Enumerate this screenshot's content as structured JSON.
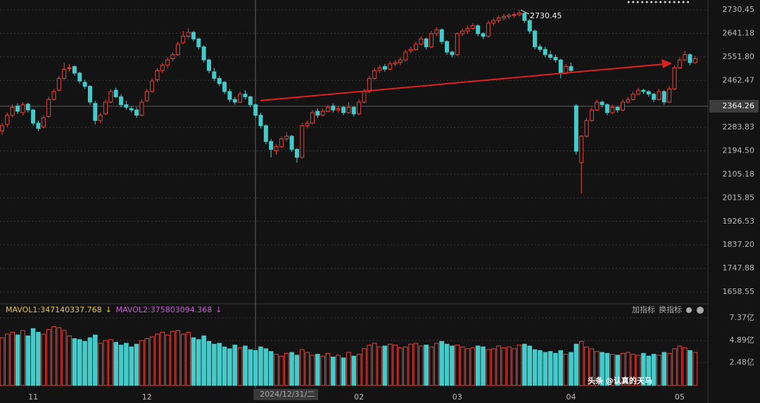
{
  "chart_data": {
    "type": "candlestick",
    "up_color": "#e8413c",
    "down_color": "#46c9c9",
    "ylim": [
      1618.5,
      2767.9
    ],
    "yticks": [
      2730.45,
      2641.18,
      {
        "value": 2551.8,
        "label": "2551.80"
      },
      2462.47,
      2283.83,
      {
        "value": 2194.5,
        "label": "2194.50"
      },
      2105.18,
      2015.85,
      1926.53,
      {
        "value": 1837.2,
        "label": "1837.20"
      },
      1747.88,
      1658.55
    ],
    "grid": true,
    "crosshair_value": 2364.26,
    "categories": [
      null,
      null,
      null,
      null,
      null,
      null,
      "11",
      null,
      null,
      null,
      null,
      null,
      null,
      null,
      null,
      null,
      null,
      null,
      null,
      null,
      null,
      null,
      null,
      null,
      null,
      null,
      null,
      null,
      "12",
      null,
      null,
      null,
      null,
      null,
      null,
      null,
      null,
      null,
      null,
      null,
      null,
      null,
      null,
      null,
      null,
      null,
      null,
      null,
      null,
      "2024/12/31/二",
      null,
      null,
      null,
      null,
      null,
      null,
      null,
      null,
      null,
      null,
      null,
      null,
      null,
      null,
      null,
      null,
      null,
      null,
      null,
      "02",
      null,
      null,
      null,
      null,
      null,
      null,
      null,
      null,
      null,
      null,
      null,
      null,
      null,
      null,
      null,
      null,
      null,
      null,
      "03",
      null,
      null,
      null,
      null,
      null,
      null,
      null,
      null,
      null,
      null,
      null,
      null,
      null,
      null,
      null,
      null,
      null,
      null,
      null,
      null,
      null,
      "04",
      null,
      null,
      null,
      null,
      null,
      null,
      null,
      null,
      null,
      null,
      null,
      null,
      null,
      null,
      null,
      null,
      null,
      null,
      null,
      null,
      "05",
      null,
      null,
      null
    ],
    "ohlc": [
      [
        2270,
        2300,
        2255,
        2290
      ],
      [
        2295,
        2340,
        2285,
        2330
      ],
      [
        2330,
        2372,
        2320,
        2360
      ],
      [
        2365,
        2375,
        2335,
        2345
      ],
      [
        2340,
        2380,
        2330,
        2370
      ],
      [
        2372,
        2378,
        2340,
        2350
      ],
      [
        2350,
        2355,
        2290,
        2300
      ],
      [
        2300,
        2310,
        2270,
        2280
      ],
      [
        2285,
        2330,
        2280,
        2320
      ],
      [
        2325,
        2400,
        2320,
        2390
      ],
      [
        2390,
        2430,
        2385,
        2420
      ],
      [
        2425,
        2480,
        2420,
        2470
      ],
      [
        2470,
        2530,
        2465,
        2505
      ],
      [
        2510,
        2525,
        2495,
        2510
      ],
      [
        2515,
        2520,
        2480,
        2490
      ],
      [
        2490,
        2495,
        2450,
        2460
      ],
      [
        2455,
        2465,
        2430,
        2440
      ],
      [
        2440,
        2445,
        2370,
        2380
      ],
      [
        2375,
        2385,
        2295,
        2310
      ],
      [
        2310,
        2340,
        2300,
        2330
      ],
      [
        2335,
        2390,
        2330,
        2380
      ],
      [
        2380,
        2430,
        2375,
        2420
      ],
      [
        2425,
        2435,
        2395,
        2400
      ],
      [
        2400,
        2410,
        2360,
        2370
      ],
      [
        2370,
        2385,
        2350,
        2360
      ],
      [
        2355,
        2365,
        2340,
        2350
      ],
      [
        2350,
        2360,
        2320,
        2330
      ],
      [
        2330,
        2390,
        2325,
        2380
      ],
      [
        2385,
        2430,
        2380,
        2420
      ],
      [
        2420,
        2470,
        2415,
        2460
      ],
      [
        2465,
        2510,
        2455,
        2500
      ],
      [
        2500,
        2530,
        2490,
        2520
      ],
      [
        2520,
        2550,
        2510,
        2540
      ],
      [
        2545,
        2570,
        2535,
        2560
      ],
      [
        2560,
        2610,
        2555,
        2600
      ],
      [
        2605,
        2650,
        2600,
        2630
      ],
      [
        2630,
        2660,
        2620,
        2645
      ],
      [
        2645,
        2650,
        2610,
        2620
      ],
      [
        2620,
        2625,
        2580,
        2590
      ],
      [
        2590,
        2595,
        2530,
        2540
      ],
      [
        2540,
        2545,
        2490,
        2500
      ],
      [
        2495,
        2510,
        2460,
        2470
      ],
      [
        2470,
        2480,
        2440,
        2450
      ],
      [
        2455,
        2460,
        2410,
        2420
      ],
      [
        2420,
        2430,
        2380,
        2390
      ],
      [
        2390,
        2400,
        2370,
        2380
      ],
      [
        2380,
        2420,
        2375,
        2410
      ],
      [
        2410,
        2425,
        2390,
        2400
      ],
      [
        2400,
        2405,
        2360,
        2370
      ],
      [
        2370,
        2375,
        2320,
        2330
      ],
      [
        2330,
        2340,
        2280,
        2290
      ],
      [
        2290,
        2295,
        2220,
        2230
      ],
      [
        2230,
        2240,
        2170,
        2200
      ],
      [
        2195,
        2220,
        2180,
        2210
      ],
      [
        2210,
        2250,
        2205,
        2240
      ],
      [
        2240,
        2265,
        2230,
        2250
      ],
      [
        2250,
        2255,
        2190,
        2200
      ],
      [
        2200,
        2205,
        2150,
        2170
      ],
      [
        2170,
        2300,
        2165,
        2290
      ],
      [
        2290,
        2310,
        2280,
        2300
      ],
      [
        2300,
        2350,
        2295,
        2340
      ],
      [
        2345,
        2355,
        2320,
        2330
      ],
      [
        2330,
        2355,
        2325,
        2345
      ],
      [
        2345,
        2370,
        2340,
        2360
      ],
      [
        2365,
        2375,
        2340,
        2350
      ],
      [
        2350,
        2365,
        2340,
        2355
      ],
      [
        2360,
        2365,
        2330,
        2340
      ],
      [
        2340,
        2380,
        2335,
        2360
      ],
      [
        2360,
        2365,
        2325,
        2335
      ],
      [
        2335,
        2390,
        2330,
        2380
      ],
      [
        2380,
        2430,
        2375,
        2420
      ],
      [
        2420,
        2480,
        2415,
        2470
      ],
      [
        2470,
        2510,
        2465,
        2500
      ],
      [
        2500,
        2520,
        2490,
        2510
      ],
      [
        2515,
        2525,
        2495,
        2505
      ],
      [
        2505,
        2535,
        2500,
        2525
      ],
      [
        2525,
        2540,
        2515,
        2530
      ],
      [
        2530,
        2550,
        2520,
        2540
      ],
      [
        2540,
        2580,
        2535,
        2570
      ],
      [
        2575,
        2590,
        2565,
        2580
      ],
      [
        2580,
        2610,
        2575,
        2600
      ],
      [
        2600,
        2630,
        2595,
        2620
      ],
      [
        2620,
        2625,
        2580,
        2590
      ],
      [
        2590,
        2650,
        2585,
        2640
      ],
      [
        2640,
        2665,
        2630,
        2655
      ],
      [
        2655,
        2660,
        2600,
        2610
      ],
      [
        2610,
        2615,
        2560,
        2570
      ],
      [
        2570,
        2575,
        2550,
        2560
      ],
      [
        2560,
        2645,
        2555,
        2640
      ],
      [
        2640,
        2660,
        2630,
        2650
      ],
      [
        2650,
        2670,
        2640,
        2660
      ],
      [
        2660,
        2680,
        2655,
        2670
      ],
      [
        2670,
        2675,
        2630,
        2640
      ],
      [
        2640,
        2645,
        2620,
        2630
      ],
      [
        2630,
        2690,
        2625,
        2680
      ],
      [
        2680,
        2700,
        2670,
        2690
      ],
      [
        2690,
        2710,
        2680,
        2700
      ],
      [
        2700,
        2715,
        2690,
        2705
      ],
      [
        2705,
        2718,
        2695,
        2710
      ],
      [
        2710,
        2722,
        2700,
        2712
      ],
      [
        2712,
        2730.45,
        2705,
        2718
      ],
      [
        2718,
        2720,
        2680,
        2690
      ],
      [
        2690,
        2695,
        2640,
        2650
      ],
      [
        2650,
        2655,
        2580,
        2590
      ],
      [
        2590,
        2600,
        2570,
        2580
      ],
      [
        2580,
        2590,
        2550,
        2560
      ],
      [
        2560,
        2575,
        2540,
        2550
      ],
      [
        2550,
        2560,
        2530,
        2540
      ],
      [
        2540,
        2545,
        2470,
        2490
      ],
      [
        2490,
        2525,
        2485,
        2515
      ],
      [
        2515,
        2530,
        2495,
        2500
      ],
      [
        2366,
        2372,
        2180,
        2193
      ],
      [
        2150,
        2255,
        2033,
        2250
      ],
      [
        2250,
        2320,
        2245,
        2310
      ],
      [
        2310,
        2360,
        2305,
        2350
      ],
      [
        2350,
        2390,
        2345,
        2380
      ],
      [
        2380,
        2385,
        2360,
        2370
      ],
      [
        2370,
        2375,
        2330,
        2340
      ],
      [
        2340,
        2370,
        2335,
        2360
      ],
      [
        2360,
        2365,
        2340,
        2350
      ],
      [
        2350,
        2390,
        2345,
        2380
      ],
      [
        2380,
        2400,
        2375,
        2390
      ],
      [
        2390,
        2420,
        2385,
        2410
      ],
      [
        2410,
        2435,
        2405,
        2425
      ],
      [
        2425,
        2430,
        2410,
        2420
      ],
      [
        2420,
        2425,
        2400,
        2410
      ],
      [
        2410,
        2415,
        2380,
        2390
      ],
      [
        2390,
        2430,
        2385,
        2420
      ],
      [
        2420,
        2425,
        2370,
        2380
      ],
      [
        2380,
        2440,
        2375,
        2430
      ],
      [
        2430,
        2520,
        2425,
        2510
      ],
      [
        2510,
        2550,
        2505,
        2540
      ],
      [
        2540,
        2575,
        2535,
        2560
      ],
      [
        2560,
        2565,
        2520,
        2530
      ],
      [
        2530,
        2555,
        2525,
        2545
      ]
    ],
    "volume": [
      5.2,
      5.6,
      5.8,
      5.5,
      6.0,
      5.4,
      6.2,
      5.8,
      5.6,
      6.1,
      6.4,
      6.3,
      6.0,
      5.4,
      5.1,
      5.0,
      4.8,
      5.2,
      5.5,
      4.6,
      4.9,
      5.0,
      4.7,
      4.4,
      4.6,
      4.2,
      4.5,
      4.9,
      5.1,
      5.3,
      5.6,
      5.8,
      5.5,
      5.9,
      6.0,
      5.6,
      5.8,
      5.2,
      5.0,
      5.4,
      4.8,
      4.5,
      4.6,
      4.2,
      4.0,
      4.4,
      4.1,
      4.3,
      3.9,
      3.8,
      4.2,
      4.0,
      3.7,
      3.4,
      3.2,
      3.5,
      3.6,
      3.3,
      3.9,
      3.6,
      3.3,
      3.4,
      3.2,
      3.5,
      3.1,
      3.3,
      3.0,
      3.6,
      3.2,
      3.4,
      4.0,
      4.4,
      4.6,
      4.2,
      4.3,
      4.5,
      4.4,
      4.1,
      4.2,
      4.5,
      4.6,
      4.3,
      4.4,
      4.2,
      4.6,
      4.8,
      4.5,
      4.3,
      4.4,
      4.2,
      4.0,
      4.1,
      4.3,
      4.2,
      3.9,
      4.0,
      4.3,
      4.1,
      4.2,
      4.0,
      4.4,
      4.5,
      4.3,
      3.9,
      3.8,
      3.6,
      3.7,
      3.5,
      3.8,
      3.4,
      3.6,
      4.5,
      4.8,
      4.2,
      4.0,
      3.7,
      3.6,
      3.5,
      3.4,
      3.3,
      3.5,
      3.6,
      3.4,
      3.3,
      3.5,
      3.2,
      3.4,
      3.3,
      3.6,
      3.5,
      4.0,
      4.3,
      4.1,
      3.8,
      3.6
    ],
    "vlim": [
      0,
      7.9
    ],
    "vticks": [
      {
        "value": 7.37,
        "label": "7.37亿"
      },
      {
        "value": 4.89,
        "label": "4.89亿"
      },
      {
        "value": 2.48,
        "label": "2.48亿"
      }
    ],
    "indicators": [
      {
        "text": "MAVOL1:347140337.768",
        "arrow": "↓",
        "color": "#e6c84a"
      },
      {
        "text": "MAVOL2:375803094.368",
        "arrow": "↓",
        "color": "#c95fd6"
      }
    ]
  },
  "toolbar": {
    "add": "加指标",
    "switch": "换指标"
  },
  "watermark": "头条 @认真的天马"
}
